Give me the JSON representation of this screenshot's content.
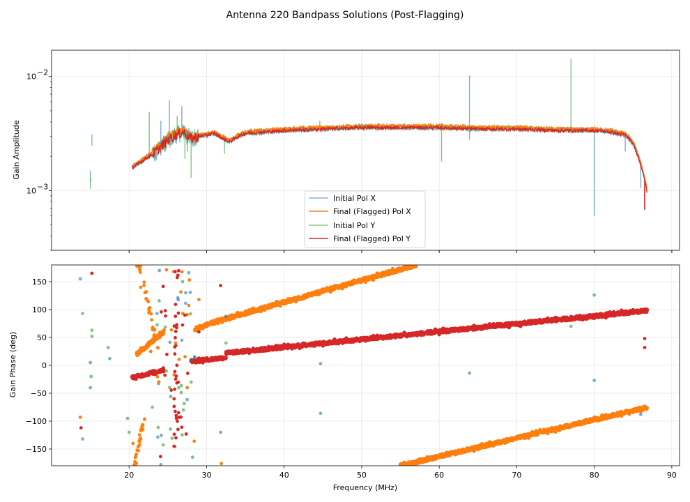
{
  "chart_data": {
    "title": "Antenna 220 Bandpass Solutions (Post-Flagging)",
    "colors": {
      "initial_x": "#1f77b4",
      "final_x": "#ff7f0e",
      "initial_y": "#2ca02c",
      "final_y": "#d62728"
    },
    "panels": [
      {
        "type": "line",
        "ylabel": "Gain Amplitude",
        "yscale": "log",
        "ylim": [
          0.0003,
          0.017
        ],
        "xlim": [
          10,
          91
        ],
        "yticks": [
          {
            "value": 0.001,
            "base": "10",
            "exp": "−3"
          },
          {
            "value": 0.01,
            "base": "10",
            "exp": "−2"
          }
        ],
        "grid": true,
        "legend": {
          "placement": "lower-center",
          "entries": [
            {
              "label": "Initial Pol X",
              "series": "initial_x"
            },
            {
              "label": "Final (Flagged) Pol X",
              "series": "final_x"
            },
            {
              "label": "Initial Pol Y",
              "series": "initial_y"
            },
            {
              "label": "Final (Flagged) Pol Y",
              "series": "final_y"
            }
          ]
        },
        "baseline": {
          "x": [
            20.4,
            21,
            22,
            23,
            24,
            25,
            26,
            27,
            28,
            29,
            30,
            31,
            32,
            33,
            34,
            35,
            40,
            45,
            50,
            55,
            60,
            65,
            70,
            75,
            80,
            82,
            84,
            85,
            86,
            86.8
          ],
          "y": [
            0.0016,
            0.0017,
            0.0019,
            0.0021,
            0.0024,
            0.0028,
            0.0031,
            0.0033,
            0.0029,
            0.003,
            0.0031,
            0.0032,
            0.0029,
            0.0027,
            0.003,
            0.0032,
            0.0034,
            0.0035,
            0.0036,
            0.0036,
            0.0036,
            0.0035,
            0.0035,
            0.0034,
            0.0034,
            0.0033,
            0.0031,
            0.0026,
            0.0017,
            0.001
          ]
        },
        "initial_x_spikes": [
          {
            "x": 15.0,
            "y": 0.0012
          },
          {
            "x": 24.1,
            "y": 0.0041
          },
          {
            "x": 25.2,
            "y": 0.0062
          },
          {
            "x": 26.8,
            "y": 0.0055
          },
          {
            "x": 27.5,
            "y": 0.0022
          },
          {
            "x": 63.9,
            "y": 0.0102
          },
          {
            "x": 63.9,
            "y": 0.0028
          },
          {
            "x": 80.0,
            "y": 0.0006
          },
          {
            "x": 84.0,
            "y": 0.0022
          },
          {
            "x": 86.0,
            "y": 0.00105
          }
        ],
        "initial_y_spikes": [
          {
            "x": 15.2,
            "y": 0.0031
          },
          {
            "x": 15.0,
            "y": 0.0013
          },
          {
            "x": 22.6,
            "y": 0.0049
          },
          {
            "x": 26.2,
            "y": 0.0045
          },
          {
            "x": 27.2,
            "y": 0.0019
          },
          {
            "x": 28.0,
            "y": 0.0013
          },
          {
            "x": 32.3,
            "y": 0.0021
          },
          {
            "x": 44.6,
            "y": 0.0041
          },
          {
            "x": 60.3,
            "y": 0.0018
          },
          {
            "x": 77.0,
            "y": 0.0143
          }
        ],
        "final_y_dropout": {
          "x": 86.5,
          "y": 0.00068
        }
      },
      {
        "type": "scatter",
        "ylabel": "Gain Phase (deg)",
        "xlabel": "Frequency (MHz)",
        "ylim": [
          -180,
          180
        ],
        "xlim": [
          10,
          91
        ],
        "yticks": [
          -150,
          -100,
          -50,
          0,
          50,
          100,
          150
        ],
        "xticks": [
          20,
          30,
          40,
          50,
          60,
          70,
          80,
          90
        ],
        "grid": true,
        "final_x_segments": [
          {
            "x": [
              21.0,
              24.5
            ],
            "y": [
              20,
              60
            ]
          },
          {
            "x": [
              28.5,
              31.5
            ],
            "y": [
              65,
              80
            ]
          },
          {
            "x": [
              31.5,
              57.0
            ],
            "y": [
              80,
              180
            ]
          },
          {
            "x": [
              55.0,
              86.8
            ],
            "y": [
              -180,
              -75
            ]
          }
        ],
        "final_y_segments": [
          {
            "x": [
              20.4,
              24.5
            ],
            "y": [
              -22,
              -8
            ]
          },
          {
            "x": [
              28.0,
              32.5
            ],
            "y": [
              7,
              14
            ]
          },
          {
            "x": [
              32.5,
              86.8
            ],
            "y": [
              22,
              98
            ]
          }
        ],
        "outliers_x": [
          {
            "x": 13.7,
            "y": 155
          },
          {
            "x": 14.0,
            "y": -132
          },
          {
            "x": 15.0,
            "y": 5
          },
          {
            "x": 15.0,
            "y": -40
          },
          {
            "x": 17.5,
            "y": 12
          },
          {
            "x": 23.9,
            "y": 170
          },
          {
            "x": 24.1,
            "y": -178
          },
          {
            "x": 26.8,
            "y": 45
          },
          {
            "x": 27.3,
            "y": 130
          },
          {
            "x": 31.8,
            "y": -120
          },
          {
            "x": 32.5,
            "y": 88
          },
          {
            "x": 44.7,
            "y": 3
          },
          {
            "x": 63.9,
            "y": -14
          },
          {
            "x": 80.0,
            "y": 126
          },
          {
            "x": 80.0,
            "y": -27
          },
          {
            "x": 86.0,
            "y": -88
          }
        ],
        "outliers_x_orange": [
          {
            "x": 13.7,
            "y": -93
          },
          {
            "x": 21.0,
            "y": 178
          },
          {
            "x": 21.5,
            "y": 140
          },
          {
            "x": 22.8,
            "y": 25
          },
          {
            "x": 26.0,
            "y": 40
          },
          {
            "x": 27.5,
            "y": -40
          },
          {
            "x": 29.0,
            "y": 118
          },
          {
            "x": 31.9,
            "y": -176
          },
          {
            "x": 20.5,
            "y": -140
          },
          {
            "x": 20.8,
            "y": -165
          }
        ],
        "outliers_y": [
          {
            "x": 14.0,
            "y": 93
          },
          {
            "x": 15.2,
            "y": 63
          },
          {
            "x": 15.2,
            "y": 52
          },
          {
            "x": 15.1,
            "y": -20
          },
          {
            "x": 17.3,
            "y": 32
          },
          {
            "x": 19.8,
            "y": -95
          },
          {
            "x": 20.0,
            "y": -120
          },
          {
            "x": 23.0,
            "y": -75
          },
          {
            "x": 24.8,
            "y": -10
          },
          {
            "x": 26.4,
            "y": -40
          },
          {
            "x": 27.0,
            "y": -80
          },
          {
            "x": 28.0,
            "y": -30
          },
          {
            "x": 32.5,
            "y": 40
          },
          {
            "x": 44.7,
            "y": -86
          },
          {
            "x": 77.0,
            "y": 70
          },
          {
            "x": 26.9,
            "y": 150
          }
        ],
        "outliers_y_red": [
          {
            "x": 13.8,
            "y": -112
          },
          {
            "x": 15.2,
            "y": 165
          },
          {
            "x": 25.8,
            "y": -60
          },
          {
            "x": 26.1,
            "y": -95
          },
          {
            "x": 27.2,
            "y": 90
          },
          {
            "x": 29.0,
            "y": 60
          },
          {
            "x": 86.5,
            "y": 48
          },
          {
            "x": 86.5,
            "y": 32
          },
          {
            "x": 31.8,
            "y": 143
          }
        ]
      }
    ]
  }
}
